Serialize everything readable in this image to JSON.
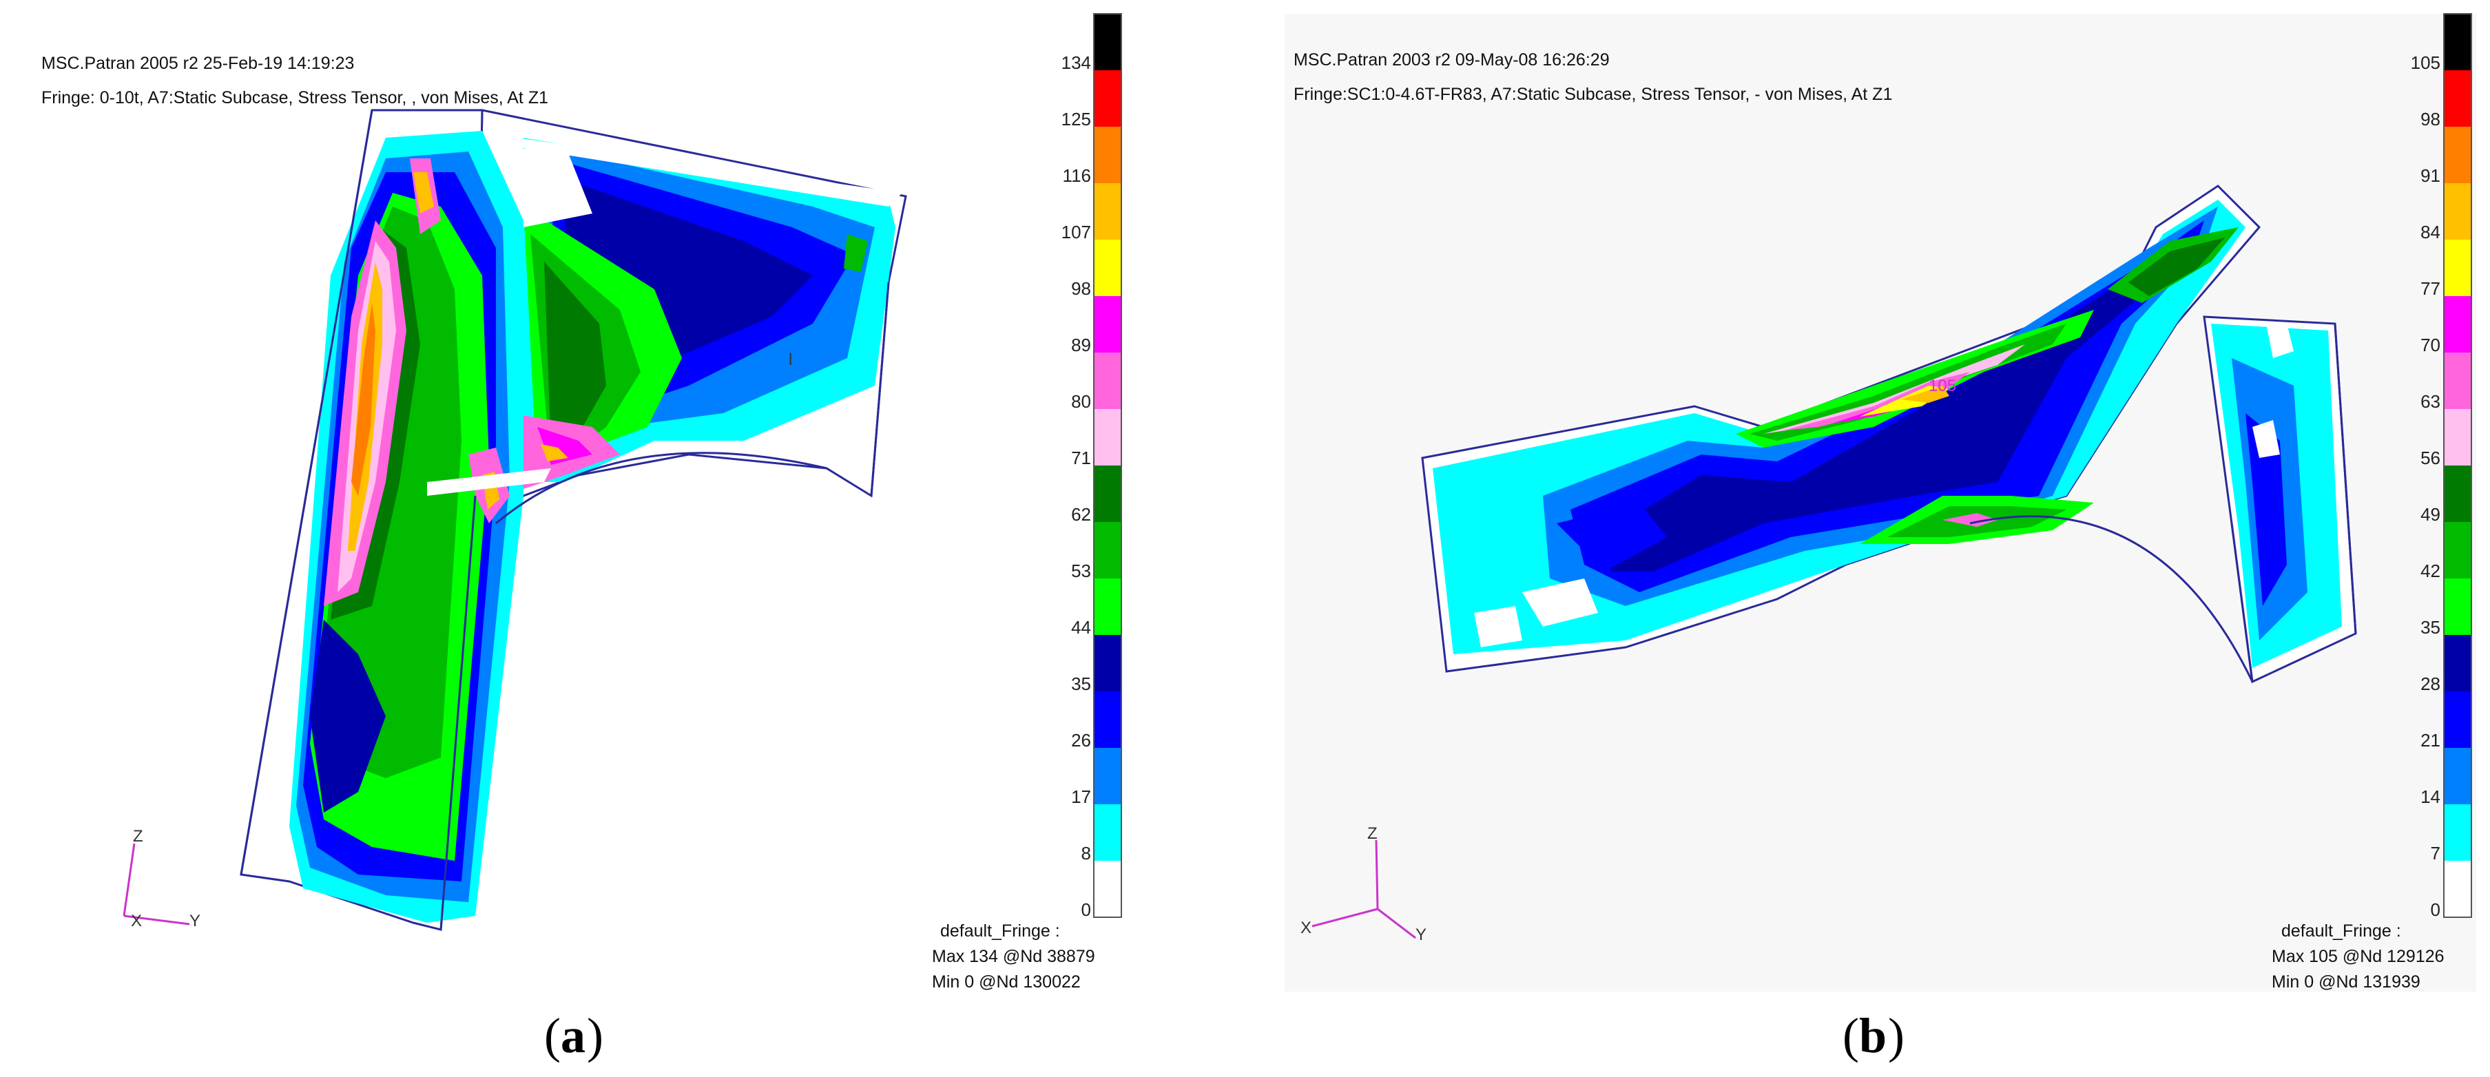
{
  "panels": [
    {
      "id": "a",
      "header_line1": "MSC.Patran 2005 r2 25-Feb-19 14:19:23",
      "header_line2": "Fringe: 0-10t, A7:Static Subcase, Stress Tensor, , von Mises, At Z1",
      "legend_ticks": [
        "134",
        "125",
        "116",
        "107",
        "98",
        "89",
        "80",
        "71",
        "62",
        "53",
        "44",
        "35",
        "26",
        "17",
        "8",
        "0"
      ],
      "fringe_name": "default_Fringe :",
      "max_text": "Max 134 @Nd 38879",
      "min_text": "Min   0 @Nd 130022",
      "axis_labels": {
        "z": "Z",
        "x": "X",
        "y": "Y"
      },
      "caption_open": "(",
      "caption_letter": "a",
      "caption_close": ")"
    },
    {
      "id": "b",
      "header_line1": "MSC.Patran 2003 r2 09-May-08 16:26:29",
      "header_line2": "Fringe:SC1:0-4.6T-FR83, A7:Static Subcase, Stress Tensor, - von Mises, At Z1",
      "legend_ticks": [
        "105",
        "98",
        "91",
        "84",
        "77",
        "70",
        "63",
        "56",
        "49",
        "42",
        "35",
        "28",
        "21",
        "14",
        "7",
        "0"
      ],
      "fringe_name": "default_Fringe :",
      "max_text": "Max 105 @Nd 129126",
      "min_text": "Min   0 @Nd 131939",
      "peak_label": "105",
      "axis_labels": {
        "z": "Z",
        "x": "X",
        "y": "Y"
      },
      "caption_open": "(",
      "caption_letter": "b",
      "caption_close": ")"
    }
  ],
  "legend_colors": [
    "#000000",
    "#ff0000",
    "#ff7f00",
    "#ffc000",
    "#ffff00",
    "#ff00ff",
    "#ff66dd",
    "#ffc0f0",
    "#007a00",
    "#00bb00",
    "#00ff00",
    "#0000a8",
    "#0000ff",
    "#0080ff",
    "#00ffff",
    "#ffffff"
  ],
  "stray_marks": {
    "panel_a_mark": "l"
  }
}
